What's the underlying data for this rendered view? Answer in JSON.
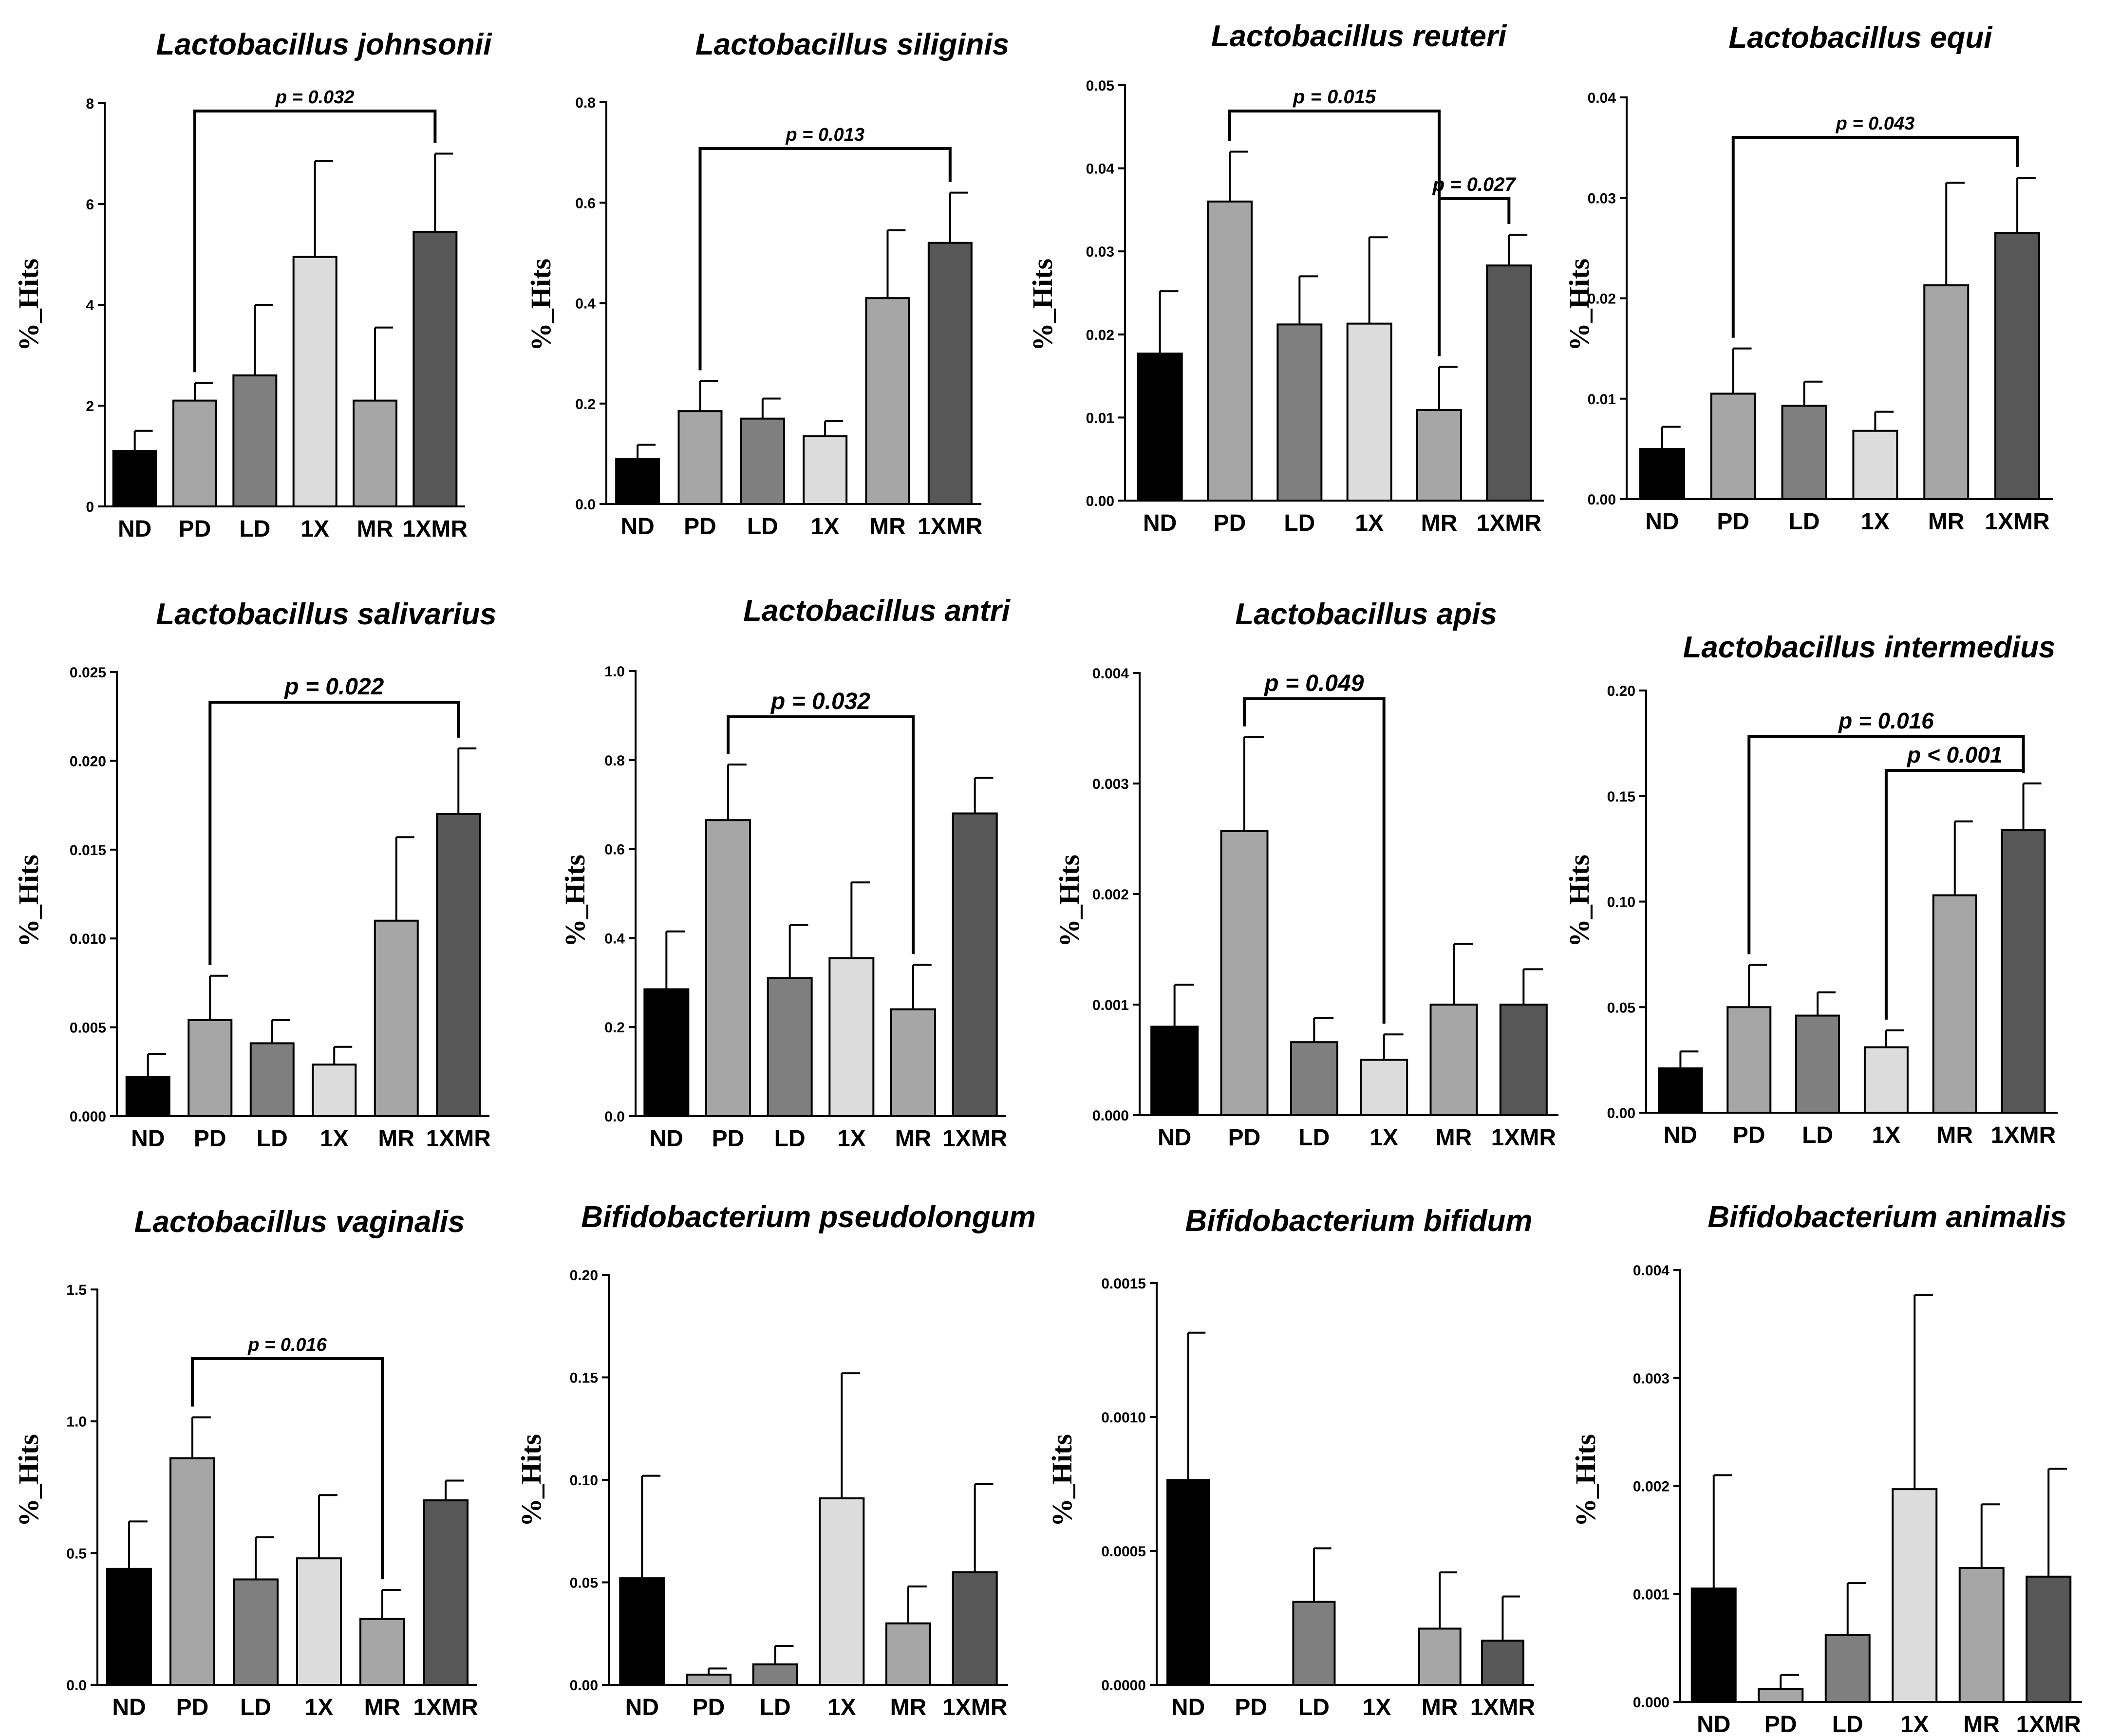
{
  "categories": [
    "ND",
    "PD",
    "LD",
    "1X",
    "MR",
    "1XMR"
  ],
  "colors": [
    "#000000",
    "#a6a6a6",
    "#7f7f7f",
    "#dcdcdc",
    "#a6a6a6",
    "#575757"
  ],
  "chart_data": [
    {
      "type": "bar",
      "title": "Lactobacillus johnsonii",
      "ylabel": "%_Hits",
      "categories": [
        "ND",
        "PD",
        "LD",
        "1X",
        "MR",
        "1XMR"
      ],
      "ylim": [
        0,
        8
      ],
      "yticks": [
        "0",
        "2",
        "4",
        "6",
        "8"
      ],
      "values": [
        1.1,
        2.1,
        2.6,
        4.95,
        2.1,
        5.45
      ],
      "errors": [
        0.4,
        0.35,
        1.4,
        1.9,
        1.45,
        1.55
      ],
      "annotations": [
        {
          "from": "PD",
          "to": "1XMR",
          "label": "p = 0.032"
        }
      ]
    },
    {
      "type": "bar",
      "title": "Lactobacillus siliginis",
      "ylabel": "%_Hits",
      "categories": [
        "ND",
        "PD",
        "LD",
        "1X",
        "MR",
        "1XMR"
      ],
      "ylim": [
        0,
        0.8
      ],
      "yticks": [
        "0.0",
        "0.2",
        "0.4",
        "0.6",
        "0.8"
      ],
      "values": [
        0.09,
        0.185,
        0.17,
        0.135,
        0.41,
        0.52
      ],
      "errors": [
        0.028,
        0.06,
        0.04,
        0.03,
        0.135,
        0.1
      ],
      "annotations": [
        {
          "from": "PD",
          "to": "1XMR",
          "label": "p = 0.013"
        }
      ]
    },
    {
      "type": "bar",
      "title": "Lactobacillus reuteri",
      "ylabel": "%_Hits",
      "categories": [
        "ND",
        "PD",
        "LD",
        "1X",
        "MR",
        "1XMR"
      ],
      "ylim": [
        0,
        0.05
      ],
      "yticks": [
        "0.00",
        "0.01",
        "0.02",
        "0.03",
        "0.04",
        "0.05"
      ],
      "values": [
        0.0177,
        0.036,
        0.0212,
        0.0213,
        0.0109,
        0.0283
      ],
      "errors": [
        0.0075,
        0.006,
        0.0058,
        0.0104,
        0.0052,
        0.0037
      ],
      "annotations": [
        {
          "from": "PD",
          "to": "MR",
          "label": "p = 0.015"
        },
        {
          "from": "MR",
          "to": "1XMR",
          "label": "p = 0.027"
        }
      ]
    },
    {
      "type": "bar",
      "title": "Lactobacillus equi",
      "ylabel": "%_Hits",
      "categories": [
        "ND",
        "PD",
        "LD",
        "1X",
        "MR",
        "1XMR"
      ],
      "ylim": [
        0,
        0.04
      ],
      "yticks": [
        "0.00",
        "0.01",
        "0.02",
        "0.03",
        "0.04"
      ],
      "values": [
        0.005,
        0.0105,
        0.0093,
        0.0068,
        0.0213,
        0.0265
      ],
      "errors": [
        0.0022,
        0.0045,
        0.0024,
        0.0019,
        0.0102,
        0.0055
      ],
      "annotations": [
        {
          "from": "PD",
          "to": "1XMR",
          "label": "p = 0.043"
        }
      ]
    },
    {
      "type": "bar",
      "title": "Lactobacillus salivarius",
      "ylabel": "%_Hits",
      "categories": [
        "ND",
        "PD",
        "LD",
        "1X",
        "MR",
        "1XMR"
      ],
      "ylim": [
        0,
        0.025
      ],
      "yticks": [
        "0.000",
        "0.005",
        "0.010",
        "0.015",
        "0.020",
        "0.025"
      ],
      "values": [
        0.0022,
        0.0054,
        0.0041,
        0.0029,
        0.011,
        0.017
      ],
      "errors": [
        0.0013,
        0.0025,
        0.0013,
        0.001,
        0.0047,
        0.0037
      ],
      "annotations": [
        {
          "from": "PD",
          "to": "1XMR",
          "label": "p = 0.022"
        }
      ]
    },
    {
      "type": "bar",
      "title": "Lactobacillus antri",
      "ylabel": "%_Hits",
      "categories": [
        "ND",
        "PD",
        "LD",
        "1X",
        "MR",
        "1XMR"
      ],
      "ylim": [
        0,
        1.0
      ],
      "yticks": [
        "0.0",
        "0.2",
        "0.4",
        "0.6",
        "0.8",
        "1.0"
      ],
      "values": [
        0.285,
        0.665,
        0.31,
        0.355,
        0.24,
        0.68
      ],
      "errors": [
        0.13,
        0.125,
        0.12,
        0.17,
        0.1,
        0.08
      ],
      "annotations": [
        {
          "from": "PD",
          "to": "MR",
          "label": "p = 0.032"
        }
      ]
    },
    {
      "type": "bar",
      "title": "Lactobacillus apis",
      "ylabel": "%_Hits",
      "categories": [
        "ND",
        "PD",
        "LD",
        "1X",
        "MR",
        "1XMR"
      ],
      "ylim": [
        0,
        0.004
      ],
      "yticks": [
        "0.000",
        "0.001",
        "0.002",
        "0.003",
        "0.004"
      ],
      "values": [
        0.0008,
        0.00257,
        0.00066,
        0.0005,
        0.001,
        0.001
      ],
      "errors": [
        0.00038,
        0.00085,
        0.00022,
        0.00023,
        0.00055,
        0.00032
      ],
      "annotations": [
        {
          "from": "PD",
          "to": "1X",
          "label": "p = 0.049"
        }
      ]
    },
    {
      "type": "bar",
      "title": "Lactobacillus intermedius",
      "ylabel": "%_Hits",
      "categories": [
        "ND",
        "PD",
        "LD",
        "1X",
        "MR",
        "1XMR"
      ],
      "ylim": [
        0,
        0.2
      ],
      "yticks": [
        "0.00",
        "0.05",
        "0.10",
        "0.15",
        "0.20"
      ],
      "values": [
        0.021,
        0.05,
        0.046,
        0.031,
        0.103,
        0.134
      ],
      "errors": [
        0.008,
        0.02,
        0.011,
        0.008,
        0.035,
        0.022
      ],
      "annotations": [
        {
          "from": "PD",
          "to": "1XMR",
          "label": "p = 0.016"
        },
        {
          "from": "1X",
          "to": "1XMR",
          "label": "p < 0.001"
        }
      ]
    },
    {
      "type": "bar",
      "title": "Lactobacillus vaginalis",
      "ylabel": "%_Hits",
      "categories": [
        "ND",
        "PD",
        "LD",
        "1X",
        "MR",
        "1XMR"
      ],
      "ylim": [
        0,
        1.5
      ],
      "yticks": [
        "0.0",
        "0.5",
        "1.0",
        "1.5"
      ],
      "values": [
        0.44,
        0.86,
        0.4,
        0.48,
        0.25,
        0.7
      ],
      "errors": [
        0.18,
        0.155,
        0.16,
        0.24,
        0.11,
        0.075
      ],
      "annotations": [
        {
          "from": "PD",
          "to": "MR",
          "label": "p = 0.016"
        }
      ]
    },
    {
      "type": "bar",
      "title": "Bifidobacterium pseudolongum",
      "ylabel": "%_Hits",
      "categories": [
        "ND",
        "PD",
        "LD",
        "1X",
        "MR",
        "1XMR"
      ],
      "ylim": [
        0,
        0.2
      ],
      "yticks": [
        "0.00",
        "0.05",
        "0.10",
        "0.15",
        "0.20"
      ],
      "values": [
        0.052,
        0.005,
        0.01,
        0.091,
        0.03,
        0.055
      ],
      "errors": [
        0.05,
        0.003,
        0.009,
        0.061,
        0.018,
        0.043
      ],
      "annotations": []
    },
    {
      "type": "bar",
      "title": "Bifidobacterium bifidum",
      "ylabel": "%_Hits",
      "categories": [
        "ND",
        "PD",
        "LD",
        "1X",
        "MR",
        "1XMR"
      ],
      "ylim": [
        0,
        0.0015
      ],
      "yticks": [
        "0.0000",
        "0.0005",
        "0.0010",
        "0.0015"
      ],
      "values": [
        0.000765,
        0,
        0.00031,
        0,
        0.00021,
        0.000165
      ],
      "errors": [
        0.00055,
        0,
        0.0002,
        0,
        0.00021,
        0.000165
      ],
      "annotations": []
    },
    {
      "type": "bar",
      "title": "Bifidobacterium animalis",
      "ylabel": "%_Hits",
      "categories": [
        "ND",
        "PD",
        "LD",
        "1X",
        "MR",
        "1XMR"
      ],
      "ylim": [
        0,
        0.004
      ],
      "yticks": [
        "0.000",
        "0.001",
        "0.002",
        "0.003",
        "0.004"
      ],
      "values": [
        0.00105,
        0.00012,
        0.00062,
        0.00197,
        0.00124,
        0.00116
      ],
      "errors": [
        0.00105,
        0.00013,
        0.00048,
        0.0018,
        0.00059,
        0.001
      ],
      "annotations": []
    }
  ]
}
